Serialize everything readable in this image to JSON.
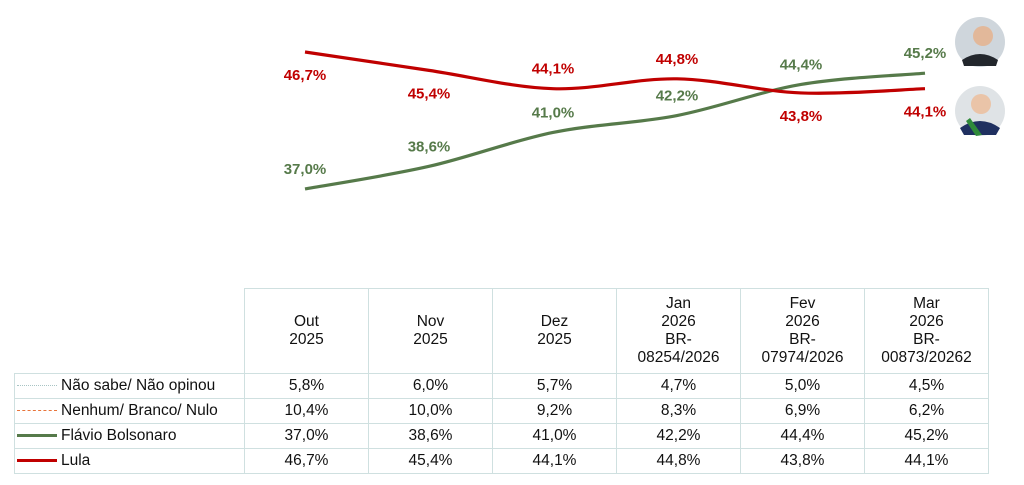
{
  "chart_data": {
    "type": "line",
    "categories": [
      "Out 2025",
      "Nov 2025",
      "Dez 2025",
      "Jan 2026",
      "Fev 2026",
      "Mar 2026"
    ],
    "series": [
      {
        "name": "Flávio Bolsonaro",
        "color": "#567a4a",
        "values": [
          37.0,
          38.6,
          41.0,
          42.2,
          44.4,
          45.2
        ],
        "labels": [
          "37,0%",
          "38,6%",
          "41,0%",
          "42,2%",
          "44,4%",
          "45,2%"
        ]
      },
      {
        "name": "Lula",
        "color": "#c00000",
        "values": [
          46.7,
          45.4,
          44.1,
          44.8,
          43.8,
          44.1
        ],
        "labels": [
          "46,7%",
          "45,4%",
          "44,1%",
          "44,8%",
          "43,8%",
          "44,1%"
        ]
      }
    ],
    "grid": false
  },
  "table": {
    "headers": [
      [
        "Out",
        "2025"
      ],
      [
        "Nov",
        "2025"
      ],
      [
        "Dez",
        "2025"
      ],
      [
        "Jan",
        "2026",
        "BR-",
        "08254/2026"
      ],
      [
        "Fev",
        "2026",
        "BR-",
        "07974/2026"
      ],
      [
        "Mar",
        "2026",
        "BR-",
        "00873/20262"
      ]
    ],
    "rows": [
      {
        "label": "Não sabe/ Não opinou",
        "style": "dotted",
        "color": "#a8c4c4",
        "values": [
          "5,8%",
          "6,0%",
          "5,7%",
          "4,7%",
          "5,0%",
          "4,5%"
        ]
      },
      {
        "label": "Nenhum/ Branco/ Nulo",
        "style": "dashed",
        "color": "#e8743b",
        "values": [
          "10,4%",
          "10,0%",
          "9,2%",
          "8,3%",
          "6,9%",
          "6,2%"
        ]
      },
      {
        "label": "Flávio Bolsonaro",
        "style": "solid",
        "color": "#567a4a",
        "values": [
          "37,0%",
          "38,6%",
          "41,0%",
          "42,2%",
          "44,4%",
          "45,2%"
        ]
      },
      {
        "label": "Lula",
        "style": "solid",
        "color": "#c00000",
        "values": [
          "46,7%",
          "45,4%",
          "44,1%",
          "44,8%",
          "43,8%",
          "44,1%"
        ]
      }
    ]
  },
  "avatars": [
    {
      "name": "Flávio Bolsonaro"
    },
    {
      "name": "Lula"
    }
  ]
}
